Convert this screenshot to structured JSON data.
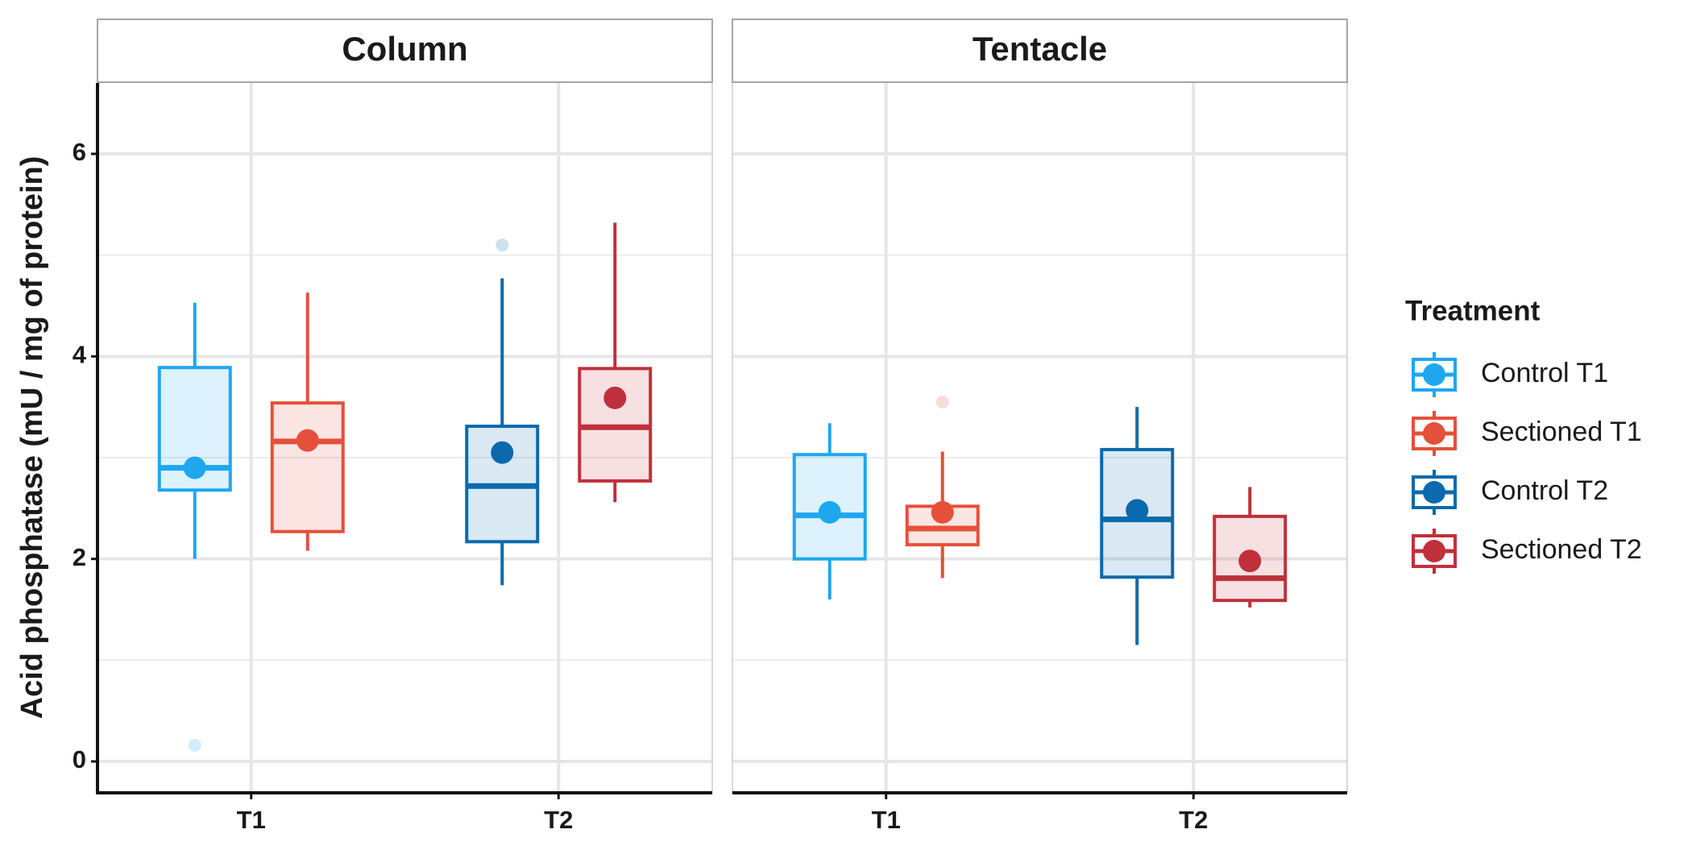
{
  "chart_data": {
    "type": "box",
    "y_label": "Acid phosphatase (mU / mg  of protein)",
    "legend_title": "Treatment",
    "facets": [
      "Column",
      "Tentacle"
    ],
    "categories": [
      "T1",
      "T2"
    ],
    "ylim": [
      -0.31,
      6.7
    ],
    "yticks": [
      0,
      2,
      4,
      6
    ],
    "minor_yticks": [
      1,
      3,
      5
    ],
    "grid": true,
    "series": [
      {
        "name": "Control T1",
        "color": "#1ea7ef",
        "category": "T1",
        "boxes": [
          {
            "whisker_low": 2.0,
            "q1": 2.68,
            "median": 2.9,
            "q3": 3.89,
            "whisker_high": 4.53,
            "mean": 2.9,
            "outliers": [
              0.16
            ]
          },
          {
            "whisker_low": 1.6,
            "q1": 2.0,
            "median": 2.43,
            "q3": 3.03,
            "whisker_high": 3.34,
            "mean": 2.46,
            "outliers": []
          }
        ]
      },
      {
        "name": "Sectioned T1",
        "color": "#e5503a",
        "category": "T1",
        "boxes": [
          {
            "whisker_low": 2.08,
            "q1": 2.27,
            "median": 3.16,
            "q3": 3.54,
            "whisker_high": 4.63,
            "mean": 3.17,
            "outliers": []
          },
          {
            "whisker_low": 1.81,
            "q1": 2.14,
            "median": 2.3,
            "q3": 2.52,
            "whisker_high": 3.06,
            "mean": 2.46,
            "outliers": [
              3.55
            ]
          }
        ]
      },
      {
        "name": "Control T2",
        "color": "#0a6aad",
        "category": "T2",
        "boxes": [
          {
            "whisker_low": 1.74,
            "q1": 2.17,
            "median": 2.72,
            "q3": 3.31,
            "whisker_high": 4.77,
            "mean": 3.05,
            "outliers": [
              5.1
            ]
          },
          {
            "whisker_low": 1.15,
            "q1": 1.82,
            "median": 2.39,
            "q3": 3.08,
            "whisker_high": 3.5,
            "mean": 2.48,
            "outliers": []
          }
        ]
      },
      {
        "name": "Sectioned T2",
        "color": "#c0303a",
        "category": "T2",
        "boxes": [
          {
            "whisker_low": 2.56,
            "q1": 2.77,
            "median": 3.3,
            "q3": 3.88,
            "whisker_high": 5.32,
            "mean": 3.59,
            "outliers": []
          },
          {
            "whisker_low": 1.52,
            "q1": 1.59,
            "median": 1.81,
            "q3": 2.42,
            "whisker_high": 2.71,
            "mean": 1.98,
            "outliers": []
          }
        ]
      }
    ]
  }
}
